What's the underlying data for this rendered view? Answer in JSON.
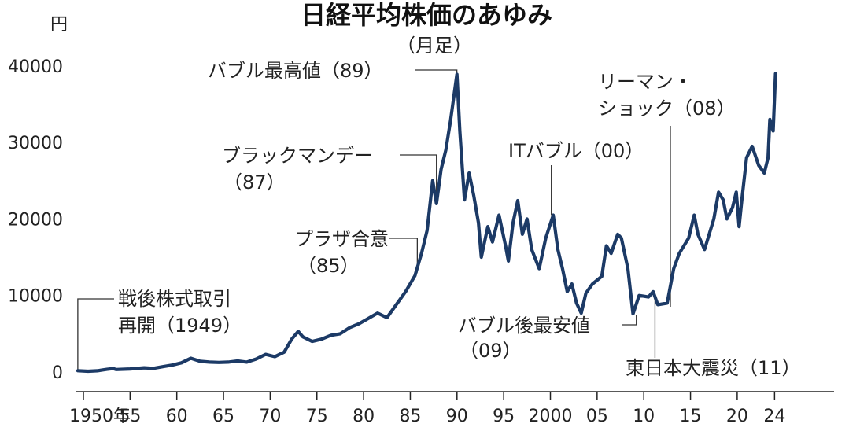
{
  "chart_data": {
    "type": "line",
    "title": "日経平均株価のあゆみ",
    "subtitle": "（月足）",
    "ylabel": "円",
    "xlim": [
      1949.4,
      2024.1
    ],
    "ylim": [
      0,
      40000
    ],
    "grid": false,
    "y_ticks": [
      {
        "value": 0,
        "label": "0"
      },
      {
        "value": 10000,
        "label": "10000"
      },
      {
        "value": 20000,
        "label": "20000"
      },
      {
        "value": 30000,
        "label": "30000"
      },
      {
        "value": 40000,
        "label": "40000"
      }
    ],
    "x_ticks": [
      {
        "value": 1950,
        "label": "1950年"
      },
      {
        "value": 1955,
        "label": "55"
      },
      {
        "value": 1960,
        "label": "60"
      },
      {
        "value": 1965,
        "label": "65"
      },
      {
        "value": 1970,
        "label": "70"
      },
      {
        "value": 1975,
        "label": "75"
      },
      {
        "value": 1980,
        "label": "80"
      },
      {
        "value": 1985,
        "label": "85"
      },
      {
        "value": 1990,
        "label": "90"
      },
      {
        "value": 1995,
        "label": "95"
      },
      {
        "value": 2000,
        "label": "2000"
      },
      {
        "value": 2005,
        "label": "05"
      },
      {
        "value": 2010,
        "label": "10"
      },
      {
        "value": 2015,
        "label": "15"
      },
      {
        "value": 2020,
        "label": "20"
      },
      {
        "value": 2024,
        "label": "24"
      }
    ],
    "series": [
      {
        "color": "#1c3a66",
        "points": [
          [
            1949.4,
            176
          ],
          [
            1950.5,
            100
          ],
          [
            1951.5,
            160
          ],
          [
            1952.5,
            350
          ],
          [
            1953.2,
            450
          ],
          [
            1953.5,
            330
          ],
          [
            1955,
            400
          ],
          [
            1956.5,
            550
          ],
          [
            1957.5,
            480
          ],
          [
            1958.5,
            700
          ],
          [
            1959.5,
            900
          ],
          [
            1960.5,
            1200
          ],
          [
            1961.5,
            1800
          ],
          [
            1962.5,
            1400
          ],
          [
            1963.5,
            1300
          ],
          [
            1964.5,
            1250
          ],
          [
            1965.5,
            1300
          ],
          [
            1966.5,
            1450
          ],
          [
            1967.5,
            1300
          ],
          [
            1968.5,
            1700
          ],
          [
            1969.5,
            2300
          ],
          [
            1970.5,
            2000
          ],
          [
            1971.5,
            2600
          ],
          [
            1972.3,
            4300
          ],
          [
            1973.0,
            5300
          ],
          [
            1973.5,
            4600
          ],
          [
            1974.5,
            4000
          ],
          [
            1975.5,
            4300
          ],
          [
            1976.5,
            4800
          ],
          [
            1977.5,
            5000
          ],
          [
            1978.5,
            5800
          ],
          [
            1979.5,
            6300
          ],
          [
            1980.5,
            7000
          ],
          [
            1981.5,
            7700
          ],
          [
            1982.5,
            7100
          ],
          [
            1983.5,
            8800
          ],
          [
            1984.5,
            10500
          ],
          [
            1985.5,
            12600
          ],
          [
            1986.2,
            15500
          ],
          [
            1986.8,
            18500
          ],
          [
            1987.4,
            25000
          ],
          [
            1987.8,
            22000
          ],
          [
            1988.3,
            26500
          ],
          [
            1988.8,
            29000
          ],
          [
            1989.3,
            32800
          ],
          [
            1989.99,
            38915
          ],
          [
            1990.3,
            31500
          ],
          [
            1990.8,
            22500
          ],
          [
            1991.3,
            26000
          ],
          [
            1991.8,
            23000
          ],
          [
            1992.3,
            19500
          ],
          [
            1992.6,
            15000
          ],
          [
            1993.3,
            19000
          ],
          [
            1993.8,
            17000
          ],
          [
            1994.5,
            20500
          ],
          [
            1995.2,
            16500
          ],
          [
            1995.5,
            14500
          ],
          [
            1996.0,
            19500
          ],
          [
            1996.5,
            22400
          ],
          [
            1997.0,
            18000
          ],
          [
            1997.5,
            20000
          ],
          [
            1998.0,
            16000
          ],
          [
            1998.8,
            13500
          ],
          [
            1999.5,
            17500
          ],
          [
            2000.3,
            20500
          ],
          [
            2000.8,
            16000
          ],
          [
            2001.3,
            13500
          ],
          [
            2001.8,
            10500
          ],
          [
            2002.3,
            11500
          ],
          [
            2002.8,
            9000
          ],
          [
            2003.3,
            7700
          ],
          [
            2003.8,
            10300
          ],
          [
            2004.5,
            11500
          ],
          [
            2005.5,
            12500
          ],
          [
            2006.0,
            16500
          ],
          [
            2006.5,
            15500
          ],
          [
            2007.2,
            18000
          ],
          [
            2007.6,
            17500
          ],
          [
            2008.3,
            13500
          ],
          [
            2008.85,
            7600
          ],
          [
            2009.5,
            10000
          ],
          [
            2010.5,
            9800
          ],
          [
            2011.0,
            10500
          ],
          [
            2011.5,
            8800
          ],
          [
            2012.5,
            9000
          ],
          [
            2013.2,
            13500
          ],
          [
            2013.8,
            15500
          ],
          [
            2014.8,
            17500
          ],
          [
            2015.4,
            20500
          ],
          [
            2015.8,
            18000
          ],
          [
            2016.5,
            16000
          ],
          [
            2017.5,
            20000
          ],
          [
            2018.0,
            23500
          ],
          [
            2018.5,
            22500
          ],
          [
            2018.9,
            20000
          ],
          [
            2019.5,
            21500
          ],
          [
            2019.9,
            23500
          ],
          [
            2020.2,
            19000
          ],
          [
            2020.5,
            22500
          ],
          [
            2021.0,
            28000
          ],
          [
            2021.6,
            29500
          ],
          [
            2022.3,
            27000
          ],
          [
            2022.9,
            26000
          ],
          [
            2023.3,
            28000
          ],
          [
            2023.5,
            33000
          ],
          [
            2023.85,
            31500
          ],
          [
            2024.1,
            39000
          ]
        ]
      }
    ],
    "annotations": [
      {
        "lines": [
          "戦後株式取引",
          "再開（1949）"
        ],
        "x": 1949.4,
        "y": 176
      },
      {
        "lines": [
          "プラザ合意",
          "（85）"
        ],
        "x": 1985.75,
        "y": 13000
      },
      {
        "lines": [
          "ブラックマンデー",
          "（87）"
        ],
        "x": 1987.8,
        "y": 22000
      },
      {
        "lines": [
          "バブル最高値（89）"
        ],
        "x": 1989.99,
        "y": 38915
      },
      {
        "lines": [
          "ITバブル（00）"
        ],
        "x": 2000.1,
        "y": 20500
      },
      {
        "lines": [
          "リーマン・",
          "ショック（08）"
        ],
        "x": 2008.7,
        "y": 12000
      },
      {
        "lines": [
          "バブル後最安値",
          "（09）"
        ],
        "x": 2009.2,
        "y": 7500
      },
      {
        "lines": [
          "東日本大震災（11）"
        ],
        "x": 2011.2,
        "y": 9500
      }
    ]
  }
}
